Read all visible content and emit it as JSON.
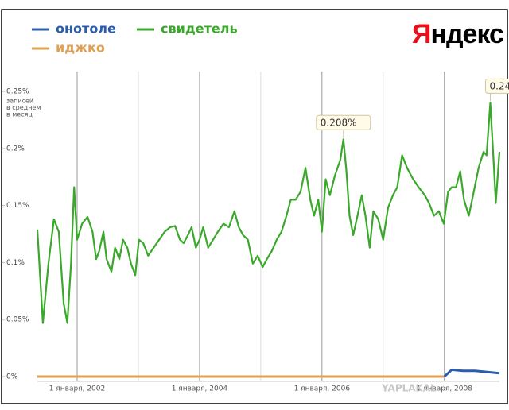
{
  "chart_data": {
    "type": "line",
    "logo": "Яндекс",
    "watermark": "YAPLAKAL",
    "ylabel": [
      "записей",
      "в среднем",
      "в месяц"
    ],
    "xlim": [
      2001.35,
      2008.9
    ],
    "xticks": [
      {
        "value": 2002,
        "label": "1 января, 2002"
      },
      {
        "value": 2004,
        "label": "1 января, 2004"
      },
      {
        "value": 2006,
        "label": "1 января, 2006"
      },
      {
        "value": 2008,
        "label": "1 января, 2008"
      }
    ],
    "minor_xticks": [
      2003,
      2005,
      2007
    ],
    "ylim": [
      0,
      0.25
    ],
    "yticks": [
      {
        "value": 0,
        "label": "0%"
      },
      {
        "value": 0.05,
        "label": "0.05%"
      },
      {
        "value": 0.1,
        "label": "0.1%"
      },
      {
        "value": 0.15,
        "label": "0.15%"
      },
      {
        "value": 0.2,
        "label": "0.2%"
      },
      {
        "value": 0.25,
        "label": "0.25%"
      }
    ],
    "series": [
      {
        "name": "онотоле",
        "color": "#2a5cb0",
        "x": [
          2008.0,
          2008.06,
          2008.12,
          2008.3,
          2008.5,
          2008.7,
          2008.9
        ],
        "values": [
          0,
          0.003,
          0.006,
          0.005,
          0.005,
          0.004,
          0.003
        ]
      },
      {
        "name": "свидетель",
        "color": "#3aa82a",
        "x": [
          2001.35,
          2001.44,
          2001.53,
          2001.62,
          2001.7,
          2001.78,
          2001.84,
          2001.9,
          2001.95,
          2002.0,
          2002.08,
          2002.17,
          2002.25,
          2002.31,
          2002.36,
          2002.43,
          2002.48,
          2002.56,
          2002.62,
          2002.69,
          2002.75,
          2002.82,
          2002.88,
          2002.95,
          2003.01,
          2003.08,
          2003.16,
          2003.25,
          2003.34,
          2003.43,
          2003.52,
          2003.6,
          2003.68,
          2003.74,
          2003.81,
          2003.87,
          2003.94,
          2004.0,
          2004.06,
          2004.14,
          2004.22,
          2004.3,
          2004.39,
          2004.48,
          2004.57,
          2004.64,
          2004.71,
          2004.79,
          2004.87,
          2004.95,
          2005.03,
          2005.1,
          2005.18,
          2005.26,
          2005.34,
          2005.42,
          2005.49,
          2005.57,
          2005.65,
          2005.73,
          2005.81,
          2005.87,
          2005.94,
          2006.0,
          2006.06,
          2006.13,
          2006.21,
          2006.3,
          2006.35,
          2006.4,
          2006.45,
          2006.51,
          2006.58,
          2006.65,
          2006.71,
          2006.78,
          2006.84,
          2006.92,
          2007.0,
          2007.08,
          2007.16,
          2007.23,
          2007.31,
          2007.39,
          2007.49,
          2007.58,
          2007.68,
          2007.75,
          2007.83,
          2007.91,
          2007.99,
          2008.06,
          2008.12,
          2008.19,
          2008.26,
          2008.32,
          2008.4,
          2008.48,
          2008.56,
          2008.64,
          2008.69,
          2008.75,
          2008.81,
          2008.84,
          2008.9
        ],
        "values": [
          0.129,
          0.047,
          0.099,
          0.138,
          0.127,
          0.064,
          0.047,
          0.099,
          0.166,
          0.12,
          0.134,
          0.14,
          0.127,
          0.103,
          0.11,
          0.127,
          0.103,
          0.092,
          0.113,
          0.103,
          0.12,
          0.113,
          0.099,
          0.089,
          0.12,
          0.117,
          0.106,
          0.113,
          0.12,
          0.127,
          0.131,
          0.132,
          0.12,
          0.117,
          0.124,
          0.131,
          0.113,
          0.12,
          0.131,
          0.113,
          0.12,
          0.127,
          0.134,
          0.131,
          0.145,
          0.131,
          0.124,
          0.12,
          0.099,
          0.106,
          0.096,
          0.103,
          0.11,
          0.12,
          0.127,
          0.141,
          0.155,
          0.155,
          0.162,
          0.183,
          0.155,
          0.141,
          0.155,
          0.127,
          0.173,
          0.159,
          0.176,
          0.19,
          0.208,
          0.18,
          0.141,
          0.124,
          0.141,
          0.159,
          0.141,
          0.113,
          0.145,
          0.138,
          0.12,
          0.148,
          0.159,
          0.166,
          0.194,
          0.183,
          0.173,
          0.166,
          0.159,
          0.152,
          0.141,
          0.145,
          0.134,
          0.162,
          0.166,
          0.166,
          0.18,
          0.155,
          0.141,
          0.162,
          0.183,
          0.197,
          0.194,
          0.24,
          0.183,
          0.152,
          0.197
        ]
      },
      {
        "name": "иджко",
        "color": "#e0a050",
        "x": [
          2001.35,
          2008.0
        ],
        "values": [
          0,
          0
        ]
      }
    ],
    "annotations": [
      {
        "text": "0.208%",
        "x": 2006.35,
        "y": 0.208
      },
      {
        "text": "0.24",
        "x": 2008.75,
        "y": 0.24
      }
    ]
  }
}
